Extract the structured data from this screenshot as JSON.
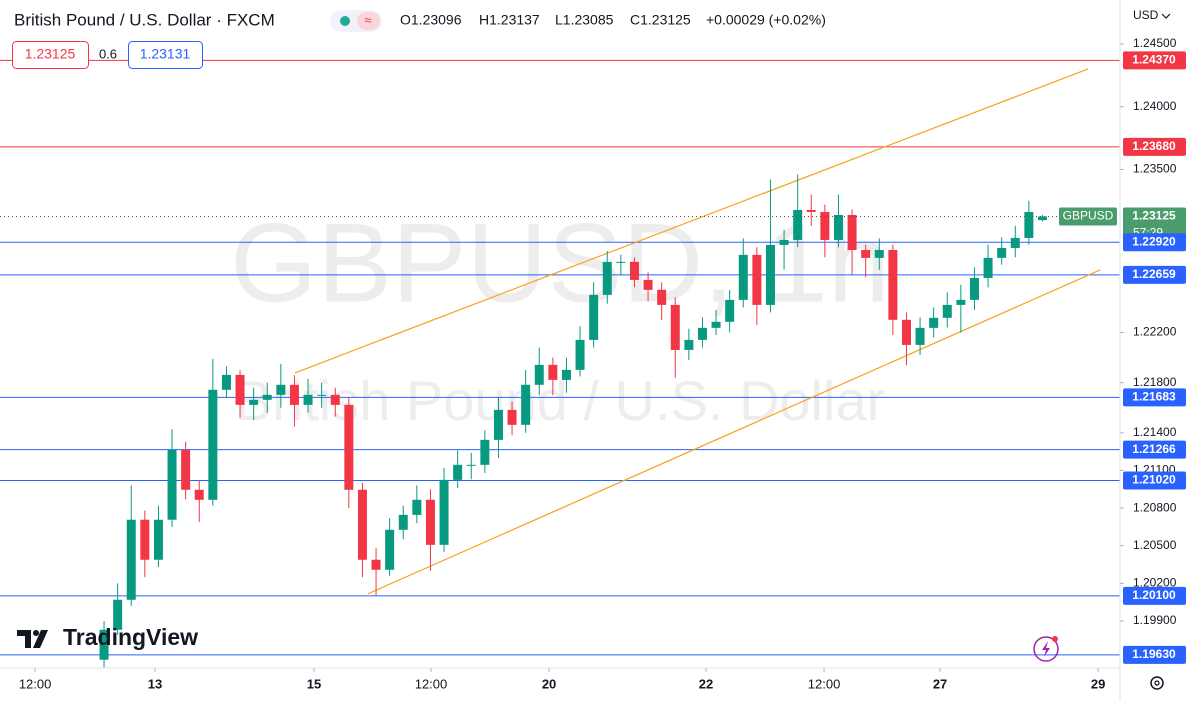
{
  "header": {
    "title": "British Pound / U.S. Dollar · FXCM",
    "open": "O1.23096",
    "high": "H1.23137",
    "low": "L1.23085",
    "close": "C1.23125",
    "change": "+0.00029 (+0.02%)",
    "sell": "1.23125",
    "spread": "0.6",
    "buy": "1.23131",
    "currency": "USD",
    "logo": "TradingView"
  },
  "watermark": {
    "symbol": "GBPUSD, 1h",
    "description": "British Pound / U.S. Dollar"
  },
  "chart_data": {
    "type": "candlestick",
    "up_color": "#089981",
    "down_color": "#f23645",
    "open": [
      1.19591,
      1.1983,
      1.20069,
      1.20707,
      1.20388,
      1.20707,
      1.21264,
      1.20946,
      1.20866,
      1.21743,
      1.21862,
      1.21623,
      1.21663,
      1.21703,
      1.21783,
      1.21623,
      1.21703,
      1.21703,
      1.21623,
      1.20946,
      1.20388,
      1.20308,
      1.20627,
      1.20746,
      1.20866,
      1.20507,
      1.21025,
      1.21145,
      1.21145,
      1.21344,
      1.21583,
      1.21464,
      1.21783,
      1.21942,
      1.21822,
      1.21902,
      1.22141,
      1.225,
      1.22763,
      1.22763,
      1.22619,
      1.2254,
      1.2242,
      1.22061,
      1.22141,
      1.22237,
      1.22285,
      1.2246,
      1.22819,
      1.2242,
      1.22898,
      1.22938,
      1.23177,
      1.23161,
      1.22938,
      1.23137,
      1.22858,
      1.22795,
      1.22858,
      1.22301,
      1.22101,
      1.22237,
      1.22317,
      1.2242,
      1.2246,
      1.22635,
      1.22795,
      1.22874,
      1.22954,
      1.23096
    ],
    "high": [
      1.199,
      1.202,
      1.2098,
      1.2078,
      1.2082,
      1.2143,
      1.2133,
      1.2102,
      1.2199,
      1.2193,
      1.219,
      1.2176,
      1.218,
      1.2195,
      1.2186,
      1.2183,
      1.218,
      1.2176,
      1.2168,
      1.21,
      1.2048,
      1.2072,
      1.2082,
      1.2098,
      1.2095,
      1.2112,
      1.2126,
      1.2124,
      1.2142,
      1.2168,
      1.2165,
      1.219,
      1.2208,
      1.22,
      1.22,
      1.2225,
      1.226,
      1.2285,
      1.2282,
      1.228,
      1.2268,
      1.226,
      1.2248,
      1.2223,
      1.2232,
      1.2238,
      1.2254,
      1.2295,
      1.2288,
      1.2342,
      1.2302,
      1.2346,
      1.233,
      1.2322,
      1.233,
      1.2318,
      1.229,
      1.2295,
      1.229,
      1.2236,
      1.2232,
      1.224,
      1.2252,
      1.2258,
      1.2272,
      1.229,
      1.2296,
      1.2305,
      1.2325,
      1.23137
    ],
    "low": [
      1.1953,
      1.1979,
      1.2002,
      1.2025,
      1.2033,
      1.2065,
      1.2087,
      1.2069,
      1.2082,
      1.2168,
      1.2152,
      1.215,
      1.2156,
      1.216,
      1.2145,
      1.2156,
      1.216,
      1.2153,
      1.208,
      1.2025,
      1.201,
      1.2026,
      1.2055,
      1.2068,
      1.203,
      1.2045,
      1.2096,
      1.2103,
      1.2108,
      1.212,
      1.2138,
      1.214,
      1.217,
      1.217,
      1.2172,
      1.2185,
      1.2208,
      1.2243,
      1.2266,
      1.2256,
      1.2245,
      1.223,
      1.2184,
      1.2198,
      1.2208,
      1.2218,
      1.222,
      1.224,
      1.2226,
      1.2236,
      1.227,
      1.2288,
      1.2305,
      1.228,
      1.2288,
      1.2266,
      1.2264,
      1.227,
      1.2218,
      1.2194,
      1.2202,
      1.2216,
      1.2224,
      1.222,
      1.2238,
      1.2256,
      1.2274,
      1.228,
      1.229,
      1.23085
    ],
    "close": [
      1.1983,
      1.20069,
      1.20707,
      1.20388,
      1.20707,
      1.21264,
      1.20946,
      1.20866,
      1.21743,
      1.21862,
      1.21623,
      1.21663,
      1.21703,
      1.21783,
      1.21623,
      1.21703,
      1.21703,
      1.21623,
      1.20946,
      1.20388,
      1.20308,
      1.20627,
      1.20746,
      1.20866,
      1.20507,
      1.21025,
      1.21145,
      1.21145,
      1.21344,
      1.21583,
      1.21464,
      1.21783,
      1.21942,
      1.21822,
      1.21902,
      1.22141,
      1.225,
      1.22763,
      1.22763,
      1.22619,
      1.2254,
      1.2242,
      1.22061,
      1.22141,
      1.22237,
      1.22285,
      1.2246,
      1.22819,
      1.2242,
      1.22898,
      1.22938,
      1.23177,
      1.23161,
      1.22938,
      1.23137,
      1.22858,
      1.22795,
      1.22858,
      1.22301,
      1.22101,
      1.22237,
      1.22317,
      1.2242,
      1.2246,
      1.22635,
      1.22795,
      1.22874,
      1.22954,
      1.23161,
      1.23125
    ],
    "xlim": [
      -7.65,
      74.7
    ],
    "xticks": [
      {
        "value": -5.07,
        "label": "12:00"
      },
      {
        "value": 3.75,
        "label": "13"
      },
      {
        "value": 15.44,
        "label": "15"
      },
      {
        "value": 24.04,
        "label": "12:00"
      },
      {
        "value": 32.72,
        "label": "20"
      },
      {
        "value": 44.26,
        "label": "22"
      },
      {
        "value": 52.94,
        "label": "12:00"
      },
      {
        "value": 61.47,
        "label": "27"
      },
      {
        "value": 73.09,
        "label": "29"
      }
    ],
    "ylim": [
      1.19525,
      1.24851
    ],
    "yticks": [
      {
        "value": 1.245,
        "label": "1.24500"
      },
      {
        "value": 1.24,
        "label": "1.24000"
      },
      {
        "value": 1.235,
        "label": "1.23500"
      },
      {
        "value": 1.222,
        "label": "1.22200"
      },
      {
        "value": 1.218,
        "label": "1.21800"
      },
      {
        "value": 1.214,
        "label": "1.21400"
      },
      {
        "value": 1.211,
        "label": "1.21100"
      },
      {
        "value": 1.208,
        "label": "1.20800"
      },
      {
        "value": 1.205,
        "label": "1.20500"
      },
      {
        "value": 1.202,
        "label": "1.20200"
      },
      {
        "value": 1.199,
        "label": "1.19900"
      }
    ],
    "trend_lines": [
      {
        "color": "#f7a21b",
        "x": [
          14.04,
          72.35
        ],
        "y": [
          1.21878,
          1.24301
        ]
      },
      {
        "color": "#f7a21b",
        "x": [
          19.41,
          73.24
        ],
        "y": [
          1.20117,
          1.22699
        ]
      }
    ],
    "levels": [
      {
        "value": 1.2437,
        "label": "1.24370",
        "color": "#f23645"
      },
      {
        "value": 1.2368,
        "label": "1.23680",
        "color": "#f23645"
      },
      {
        "value": 1.2292,
        "label": "1.22920",
        "color": "#2962ff"
      },
      {
        "value": 1.22659,
        "label": "1.22659",
        "color": "#2962ff"
      },
      {
        "value": 1.21683,
        "label": "1.21683",
        "color": "#2962ff"
      },
      {
        "value": 1.21266,
        "label": "1.21266",
        "color": "#2962ff"
      },
      {
        "value": 1.2102,
        "label": "1.21020",
        "color": "#2962ff"
      },
      {
        "value": 1.201,
        "label": "1.20100",
        "color": "#2962ff"
      },
      {
        "value": 1.1963,
        "label": "1.19630",
        "color": "#2962ff"
      }
    ],
    "last_price": {
      "name": "GBPUSD",
      "value": 1.23125,
      "label": "1.23125",
      "countdown": "57:29",
      "color": "#4a9c6d"
    }
  }
}
